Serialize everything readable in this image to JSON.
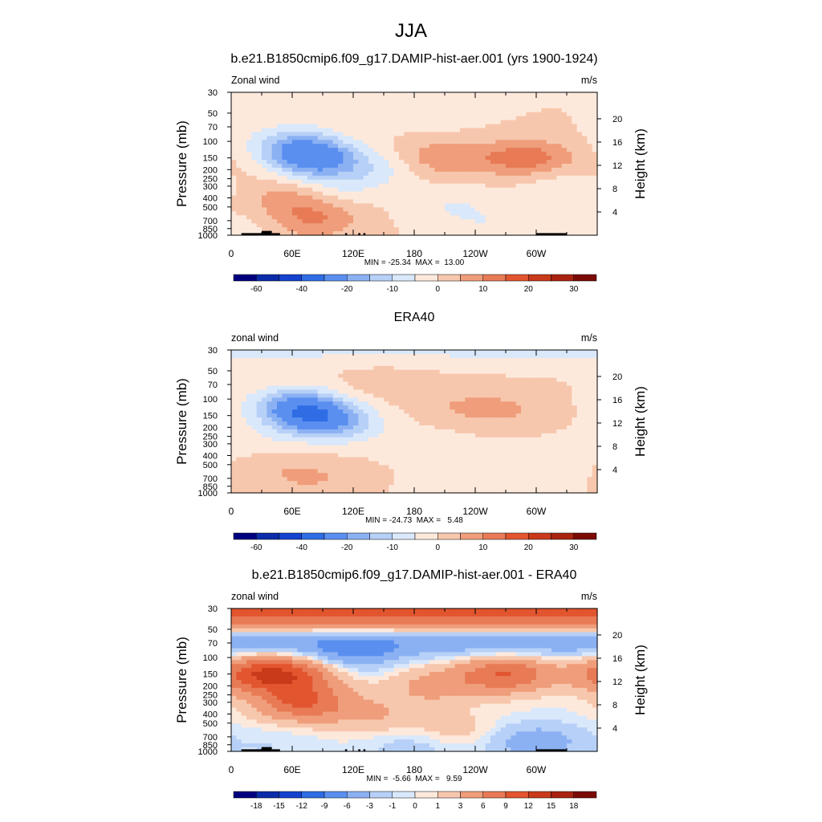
{
  "page_title": "JJA",
  "colors": {
    "standard_scale": [
      "#00007f",
      "#0b2ca9",
      "#1543cf",
      "#2f6de5",
      "#5a8ff0",
      "#8bb1f3",
      "#b7d0f7",
      "#d9e8fb",
      "#fde9dc",
      "#f7c7ad",
      "#ef9d7a",
      "#e87a56",
      "#e2552f",
      "#c93a1a",
      "#a92310",
      "#7b0a05"
    ],
    "diff_scale": [
      "#00007f",
      "#0b2ca9",
      "#1543cf",
      "#2f6de5",
      "#5a8ff0",
      "#8bb1f3",
      "#b7d0f7",
      "#d9e8fb",
      "#fde9dc",
      "#f7c7ad",
      "#ef9d7a",
      "#e87a56",
      "#e2552f",
      "#c93a1a",
      "#a92310",
      "#7b0a05"
    ],
    "topography": "#000000"
  },
  "chart_data": [
    {
      "type": "heatmap",
      "title": "b.e21.B1850cmip6.f09_g17.DAMIP-hist-aer.001 (yrs 1900-1924)",
      "left_label": "Zonal wind",
      "units": "m/s",
      "ylabel": "Pressure (mb)",
      "ylabel_right": "Height (km)",
      "x_ticks": [
        "0",
        "60E",
        "120E",
        "180",
        "120W",
        "60W"
      ],
      "y_ticks": [
        "30",
        "50",
        "70",
        "100",
        "150",
        "200",
        "250",
        "300",
        "400",
        "500",
        "700",
        "850",
        "1000"
      ],
      "y_ticks_right": [
        "20",
        "16",
        "12",
        "8",
        "4"
      ],
      "stats": "MIN = -25.34  MAX =  13.00",
      "colorbar_labels": [
        "-60",
        "-40",
        "-20",
        "-10",
        "0",
        "10",
        "20",
        "30"
      ],
      "scale": "standard",
      "topography": true,
      "features": [
        {
          "lon": -999,
          "p": 30,
          "v": 0
        },
        {
          "lon": 80,
          "p": 150,
          "v": -25
        },
        {
          "lon": 60,
          "p": 100,
          "v": -10
        },
        {
          "lon": 100,
          "p": 300,
          "v": -6
        },
        {
          "lon": 140,
          "p": 200,
          "v": -6
        },
        {
          "lon": 60,
          "p": 400,
          "v": 8
        },
        {
          "lon": 80,
          "p": 700,
          "v": 10
        },
        {
          "lon": 210,
          "p": 150,
          "v": 9
        },
        {
          "lon": 290,
          "p": 150,
          "v": 13
        },
        {
          "lon": 200,
          "p": 50,
          "v": -3
        },
        {
          "lon": 330,
          "p": 300,
          "v": -4
        },
        {
          "lon": 220,
          "p": 500,
          "v": -5
        },
        {
          "lon": 260,
          "p": 850,
          "v": -4
        },
        {
          "lon": 20,
          "p": 850,
          "v": -3
        },
        {
          "lon": 10,
          "p": 200,
          "v": 2
        }
      ]
    },
    {
      "type": "heatmap",
      "title": "ERA40",
      "left_label": "zonal wind",
      "units": "m/s",
      "ylabel": "Pressure (mb)",
      "ylabel_right": "Height (km)",
      "x_ticks": [
        "0",
        "60E",
        "120E",
        "180",
        "120W",
        "60W"
      ],
      "y_ticks": [
        "30",
        "50",
        "70",
        "100",
        "150",
        "200",
        "250",
        "300",
        "400",
        "500",
        "700",
        "850",
        "1000"
      ],
      "y_ticks_right": [
        "20",
        "16",
        "12",
        "8",
        "4"
      ],
      "stats": "MIN = -24.73  MAX =   5.48",
      "colorbar_labels": [
        "-60",
        "-40",
        "-20",
        "-10",
        "0",
        "10",
        "20",
        "30"
      ],
      "scale": "standard",
      "topography": false,
      "features": [
        {
          "lon": -999,
          "p": 30,
          "v": -6
        },
        {
          "lon": 80,
          "p": 150,
          "v": -24
        },
        {
          "lon": 60,
          "p": 110,
          "v": -12
        },
        {
          "lon": 110,
          "p": 200,
          "v": -8
        },
        {
          "lon": 30,
          "p": 300,
          "v": -3
        },
        {
          "lon": 200,
          "p": 300,
          "v": -2
        },
        {
          "lon": 220,
          "p": 120,
          "v": 4
        },
        {
          "lon": 270,
          "p": 130,
          "v": 5
        },
        {
          "lon": 150,
          "p": 70,
          "v": 3
        },
        {
          "lon": 80,
          "p": 700,
          "v": 5
        },
        {
          "lon": 40,
          "p": 500,
          "v": 3
        },
        {
          "lon": 300,
          "p": 500,
          "v": -4
        },
        {
          "lon": 230,
          "p": 850,
          "v": -3
        }
      ]
    },
    {
      "type": "heatmap",
      "title": "b.e21.B1850cmip6.f09_g17.DAMIP-hist-aer.001 - ERA40",
      "left_label": "zonal wind",
      "units": "m/s",
      "ylabel": "Pressure (mb)",
      "ylabel_right": "Height (km)",
      "x_ticks": [
        "0",
        "60E",
        "120E",
        "180",
        "120W",
        "60W"
      ],
      "y_ticks": [
        "30",
        "50",
        "70",
        "100",
        "150",
        "200",
        "250",
        "300",
        "400",
        "500",
        "700",
        "850",
        "1000"
      ],
      "y_ticks_right": [
        "20",
        "16",
        "12",
        "8",
        "4"
      ],
      "stats": "MIN =  -5.66  MAX =   9.59",
      "colorbar_labels": [
        "-18",
        "-15",
        "-12",
        "-9",
        "-6",
        "-3",
        "-1",
        "0",
        "1",
        "3",
        "6",
        "9",
        "12",
        "15",
        "18"
      ],
      "scale": "diff",
      "topography": true,
      "features": [
        {
          "lon": -999,
          "p": 30,
          "v": 7
        },
        {
          "lon": -999,
          "p": 40,
          "v": 5
        },
        {
          "lon": -999,
          "p": 70,
          "v": -5
        },
        {
          "lon": 120,
          "p": 90,
          "v": -5
        },
        {
          "lon": 60,
          "p": 150,
          "v": 8
        },
        {
          "lon": 70,
          "p": 300,
          "v": 9
        },
        {
          "lon": 20,
          "p": 150,
          "v": 8
        },
        {
          "lon": 270,
          "p": 150,
          "v": 9
        },
        {
          "lon": 200,
          "p": 200,
          "v": 4
        },
        {
          "lon": 140,
          "p": 400,
          "v": 3
        },
        {
          "lon": 220,
          "p": 600,
          "v": 2
        },
        {
          "lon": 300,
          "p": 800,
          "v": -5
        },
        {
          "lon": 180,
          "p": 900,
          "v": -2
        },
        {
          "lon": 40,
          "p": 900,
          "v": -1
        }
      ]
    }
  ]
}
